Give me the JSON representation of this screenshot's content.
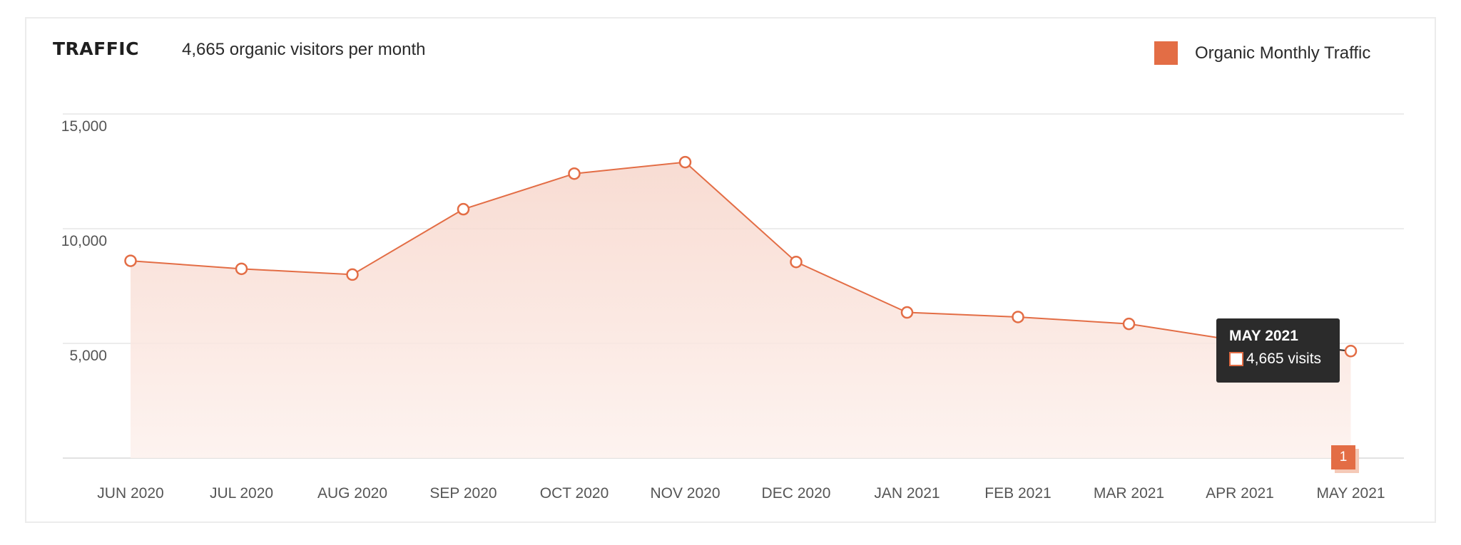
{
  "header": {
    "title": "TRAFFIC",
    "subtitle": "4,665 organic visitors per month"
  },
  "legend": {
    "label": "Organic Monthly Traffic",
    "color": "#e36d45"
  },
  "tooltip": {
    "title": "MAY 2021",
    "value_text": "4,665 visits"
  },
  "marker_badge": "1",
  "chart_data": {
    "type": "area",
    "title": "TRAFFIC",
    "subtitle": "4,665 organic visitors per month",
    "categories": [
      "JUN 2020",
      "JUL 2020",
      "AUG 2020",
      "SEP 2020",
      "OCT 2020",
      "NOV 2020",
      "DEC 2020",
      "JAN 2021",
      "FEB 2021",
      "MAR 2021",
      "APR 2021",
      "MAY 2021"
    ],
    "series": [
      {
        "name": "Organic Monthly Traffic",
        "color": "#e36d45",
        "values": [
          8600,
          8250,
          8000,
          10850,
          12400,
          12900,
          8550,
          6350,
          6150,
          5850,
          5100,
          4665
        ]
      }
    ],
    "y_ticks": [
      "15,000",
      "10,000",
      "5,000"
    ],
    "y_tick_values": [
      15000,
      10000,
      5000
    ],
    "ylim": [
      0,
      15000
    ],
    "grid": true,
    "legend_position": "top-right"
  }
}
